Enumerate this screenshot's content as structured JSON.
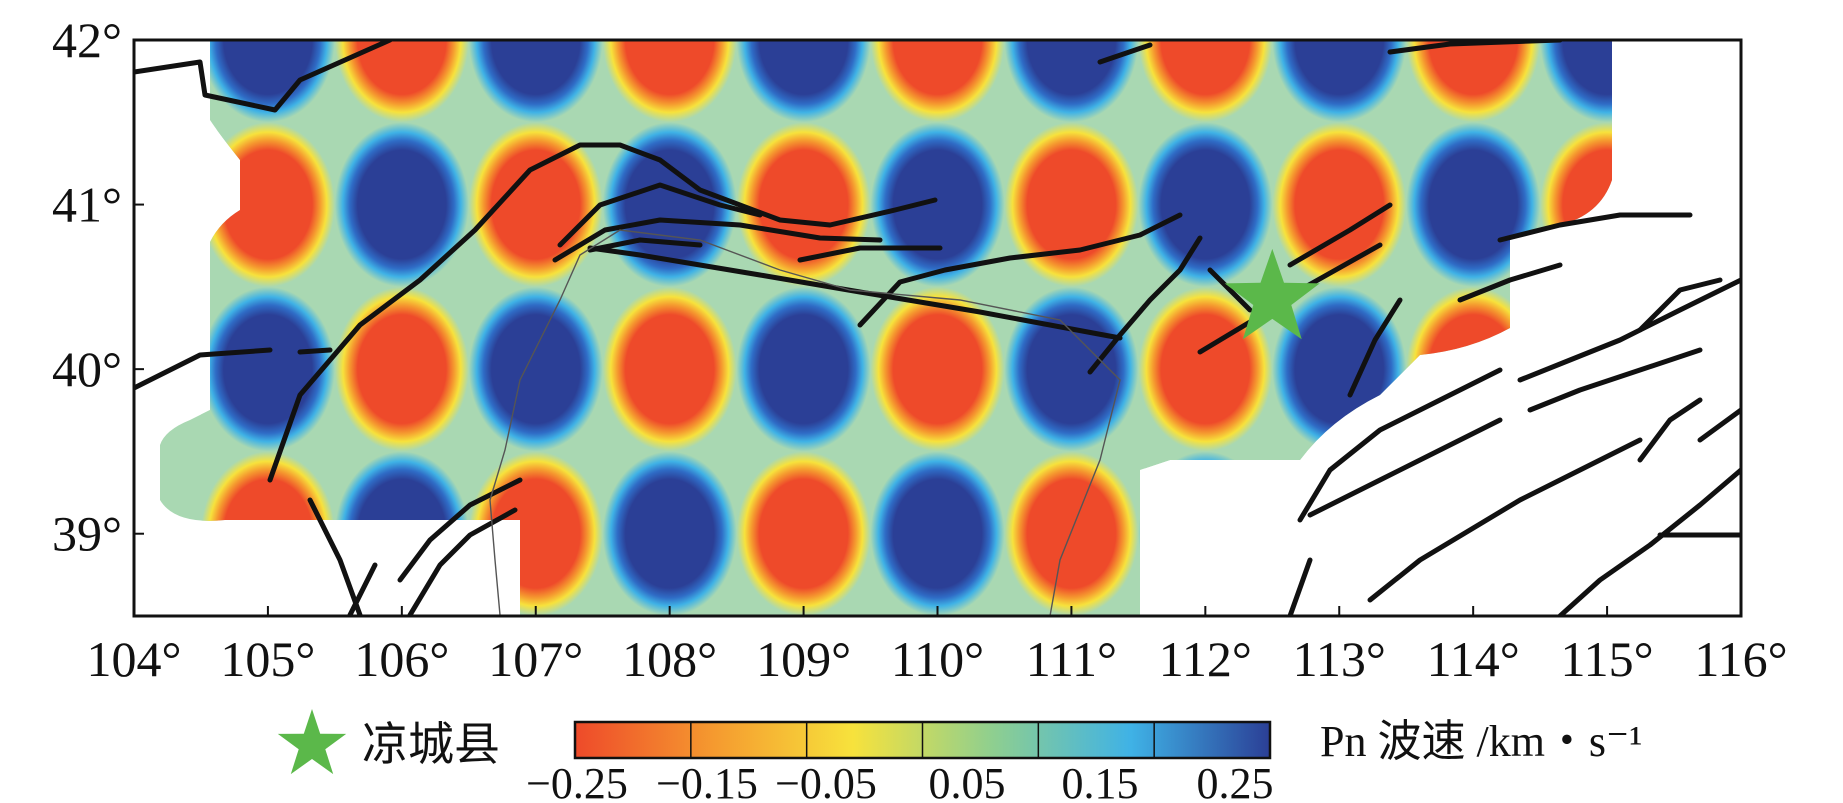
{
  "map": {
    "x_ticks": [
      "104°",
      "105°",
      "106°",
      "107°",
      "108°",
      "109°",
      "110°",
      "111°",
      "112°",
      "113°",
      "114°",
      "115°",
      "116°"
    ],
    "y_ticks": [
      "42°",
      "41°",
      "40°",
      "39°"
    ],
    "grid": false,
    "checkerboard": {
      "pattern": "alternating",
      "cell_size_degrees": 1,
      "amplitude": 0.25,
      "colors": {
        "positive": "#2b3f96",
        "negative": "#ee4a2a"
      }
    },
    "marker": {
      "icon": "star-icon",
      "color": "#5bb84a",
      "lon": 112.5,
      "lat": 40.5
    }
  },
  "legend": {
    "marker_label": "凉城县",
    "colorbar_title": "Pn 波速 /km・s⁻¹",
    "colorbar_ticks": [
      "−0.25",
      "−0.15",
      "−0.05",
      "0.05",
      "0.15",
      "0.25"
    ],
    "colorbar_stops": [
      "#ee4a2a",
      "#f59a2f",
      "#f7e23c",
      "#8fcf8f",
      "#3fb2e6",
      "#2b3f96"
    ]
  }
}
